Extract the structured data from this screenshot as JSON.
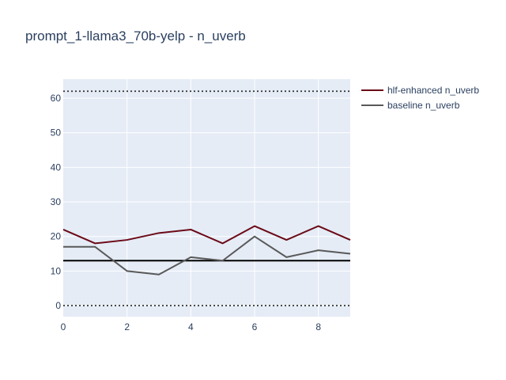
{
  "chart_data": {
    "type": "line",
    "title": "prompt_1-llama3_70b-yelp - n_uverb",
    "xlabel": "",
    "ylabel": "",
    "x": [
      0,
      1,
      2,
      3,
      4,
      5,
      6,
      7,
      8,
      9
    ],
    "xlim": [
      0,
      9
    ],
    "ylim": [
      -3.2,
      65.5
    ],
    "x_ticks": [
      0,
      2,
      4,
      6,
      8
    ],
    "y_ticks": [
      0,
      10,
      20,
      30,
      40,
      50,
      60
    ],
    "grid": true,
    "legend_position": "top-right",
    "series": [
      {
        "name": "hlf-enhanced n_uverb",
        "color": "#6b0a17",
        "values": [
          22,
          18,
          19,
          21,
          22,
          18,
          23,
          19,
          23,
          19
        ]
      },
      {
        "name": "baseline n_uverb",
        "color": "#595959",
        "values": [
          17,
          17,
          10,
          9,
          14,
          13,
          20,
          14,
          16,
          15
        ]
      }
    ],
    "reference_lines": [
      {
        "y": 62,
        "style": "dotted",
        "color": "#333333"
      },
      {
        "y": 0,
        "style": "dotted",
        "color": "#333333"
      },
      {
        "y": 13,
        "style": "solid",
        "color": "#000000"
      }
    ]
  }
}
